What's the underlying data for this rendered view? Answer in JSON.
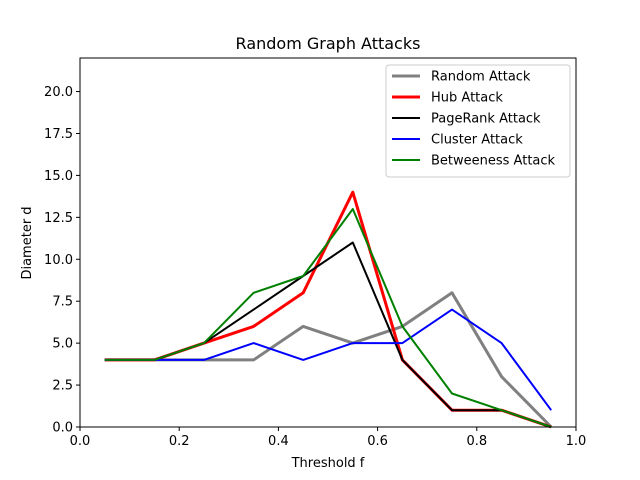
{
  "chart_data": {
    "type": "line",
    "title": "Random Graph Attacks",
    "xlabel": "Threshold f",
    "ylabel": "Diameter d",
    "xlim": [
      0.0,
      1.0
    ],
    "ylim": [
      0.0,
      22.0
    ],
    "xticks": [
      "0.0",
      "0.2",
      "0.4",
      "0.6",
      "0.8",
      "1.0"
    ],
    "yticks": [
      "0.0",
      "2.5",
      "5.0",
      "7.5",
      "10.0",
      "12.5",
      "15.0",
      "17.5",
      "20.0"
    ],
    "grid": false,
    "legend_position": "top-right",
    "x": [
      0.05,
      0.15,
      0.25,
      0.35,
      0.45,
      0.55,
      0.65,
      0.75,
      0.85,
      0.95
    ],
    "series": [
      {
        "name": "Random Attack",
        "color": "#808080",
        "width": 3,
        "values": [
          4,
          4,
          4,
          4,
          6,
          5,
          6,
          8,
          3,
          0
        ]
      },
      {
        "name": "Hub Attack",
        "color": "#ff0000",
        "width": 3,
        "values": [
          4,
          4,
          5,
          6,
          8,
          14,
          4,
          1,
          1,
          0
        ]
      },
      {
        "name": "PageRank Attack",
        "color": "#000000",
        "width": 2,
        "values": [
          4,
          4,
          5,
          7,
          9,
          11,
          4,
          1,
          1,
          0
        ]
      },
      {
        "name": "Cluster Attack",
        "color": "#0000ff",
        "width": 2,
        "values": [
          4,
          4,
          4,
          5,
          4,
          5,
          5,
          7,
          5,
          1
        ]
      },
      {
        "name": "Betweeness Attack",
        "color": "#008000",
        "width": 2,
        "values": [
          4,
          4,
          5,
          8,
          9,
          13,
          6,
          2,
          1,
          0
        ]
      }
    ]
  }
}
